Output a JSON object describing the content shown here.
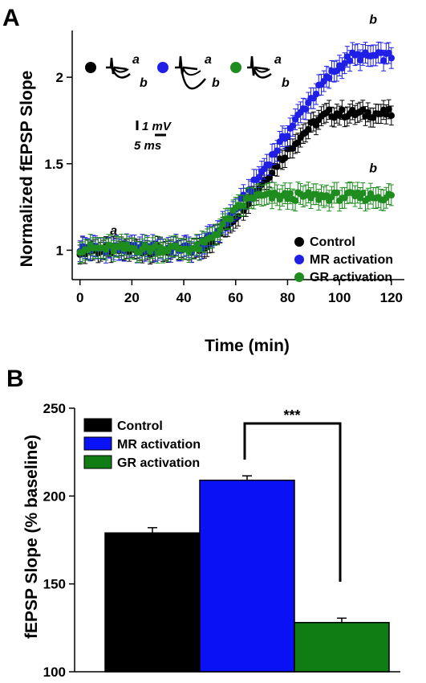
{
  "chart_data": [
    {
      "panel": "A",
      "type": "scatter",
      "xlabel": "Time (min)",
      "ylabel": "Normalized fEPSP Slope",
      "xlim": [
        -3,
        125
      ],
      "ylim": [
        0.83,
        2.27
      ],
      "xticks": [
        0,
        20,
        40,
        60,
        80,
        100,
        120
      ],
      "yticks": [
        1,
        1.5,
        2
      ],
      "ytick_labels": [
        "1",
        "1.5",
        "2"
      ],
      "legend_position": "bottom-right",
      "series": [
        {
          "name": "Control",
          "color": "#000000",
          "baseline": 1.0,
          "baseline_end": 45,
          "rise_start": 45,
          "plateau": 1.79,
          "plateau_start": 96,
          "error": 0.055
        },
        {
          "name": "MR activation",
          "color": "#1f1fe6",
          "baseline": 1.01,
          "baseline_end": 45,
          "rise_start": 45,
          "plateau": 2.12,
          "plateau_start": 105,
          "error": 0.06
        },
        {
          "name": "GR activation",
          "color": "#1e8c1e",
          "baseline": 1.01,
          "baseline_end": 45,
          "rise_start": 45,
          "plateau": 1.31,
          "plateau_start": 67,
          "error": 0.06
        }
      ],
      "annotations": [
        {
          "text": "a",
          "x": 13,
          "y": 1.09
        },
        {
          "text": "b",
          "x": 113,
          "y": 2.31
        },
        {
          "text": "b",
          "x": 113,
          "y": 1.45
        }
      ],
      "inset": {
        "trace_labels": [
          "a",
          "b"
        ],
        "scale_bar": {
          "v_label": "1 mV",
          "t_label": "5 ms"
        }
      }
    },
    {
      "panel": "B",
      "type": "bar",
      "ylabel": "fEPSP Slope (% baseline)",
      "ylim": [
        100,
        250
      ],
      "yticks": [
        100,
        150,
        200,
        250
      ],
      "categories": [
        "Control",
        "MR activation",
        "GR activation"
      ],
      "values": [
        179,
        209,
        128
      ],
      "errors": [
        3,
        2.5,
        2.5
      ],
      "colors": [
        "#000000",
        "#0a12f5",
        "#0f7d14"
      ],
      "legend_position": "top-left",
      "significance": {
        "text": "***",
        "between": [
          "MR activation",
          "GR activation"
        ]
      }
    }
  ]
}
